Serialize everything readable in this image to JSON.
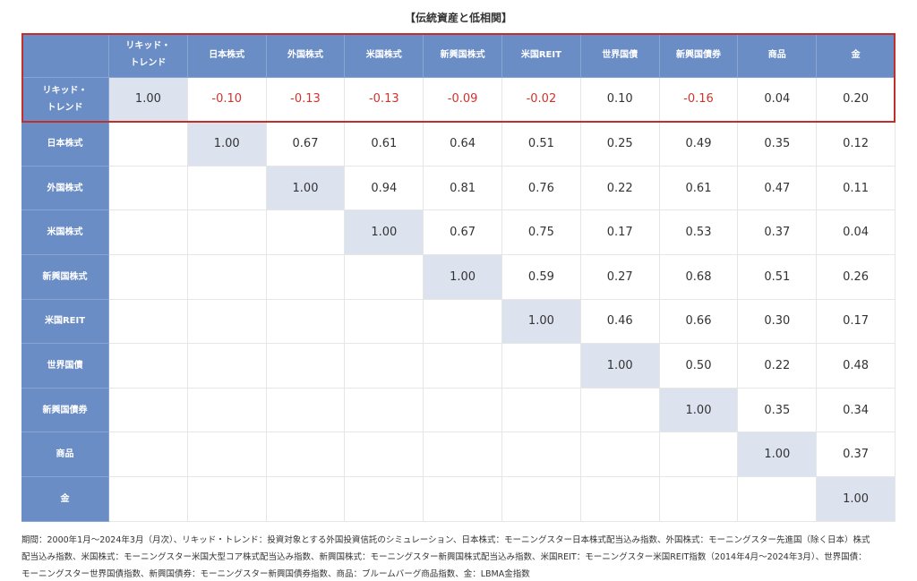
{
  "title": "【伝統資産と低相関】",
  "table": {
    "columns": [
      "リキッド・トレンド",
      "日本株式",
      "外国株式",
      "米国株式",
      "新興国株式",
      "米国REIT",
      "世界国債",
      "新興国債券",
      "商品",
      "金"
    ],
    "rows": [
      {
        "label": "リキッド・トレンド",
        "values": [
          "1.00",
          "-0.10",
          "-0.13",
          "-0.13",
          "-0.09",
          "-0.02",
          "0.10",
          "-0.16",
          "0.04",
          "0.20"
        ]
      },
      {
        "label": "日本株式",
        "values": [
          "1.00",
          "0.67",
          "0.61",
          "0.64",
          "0.51",
          "0.25",
          "0.49",
          "0.35",
          "0.12"
        ]
      },
      {
        "label": "外国株式",
        "values": [
          "1.00",
          "0.94",
          "0.81",
          "0.76",
          "0.22",
          "0.61",
          "0.47",
          "0.11"
        ]
      },
      {
        "label": "米国株式",
        "values": [
          "1.00",
          "0.67",
          "0.75",
          "0.17",
          "0.53",
          "0.37",
          "0.04"
        ]
      },
      {
        "label": "新興国株式",
        "values": [
          "1.00",
          "0.59",
          "0.27",
          "0.68",
          "0.51",
          "0.26"
        ]
      },
      {
        "label": "米国REIT",
        "values": [
          "1.00",
          "0.46",
          "0.66",
          "0.30",
          "0.17"
        ]
      },
      {
        "label": "世界国債",
        "values": [
          "1.00",
          "0.50",
          "0.22",
          "0.48"
        ]
      },
      {
        "label": "新興国債券",
        "values": [
          "1.00",
          "0.35",
          "0.34"
        ]
      },
      {
        "label": "商品",
        "values": [
          "1.00",
          "0.37"
        ]
      },
      {
        "label": "金",
        "values": [
          "1.00"
        ]
      }
    ]
  },
  "footnote": [
    "期間：2000年1月～2024年3月（月次）、リキッド・トレンド：投資対象とする外国投資信託のシミュレーション、日本株式：モーニングスター日本株式配当込み指数、外国株式：モーニングスター先進国（除く日本）株式",
    "配当込み指数、米国株式：モーニングスター米国大型コア株式配当込み指数、新興国株式：モーニングスター新興国株式配当込み指数、米国REIT：モーニングスター米国REIT指数（2014年4月～2024年3月）、世界国債：",
    "モーニングスター世界国債指数、新興国債券：モーニングスター新興国債券指数、商品：ブルームバーグ商品指数、金：LBMA金指数"
  ]
}
